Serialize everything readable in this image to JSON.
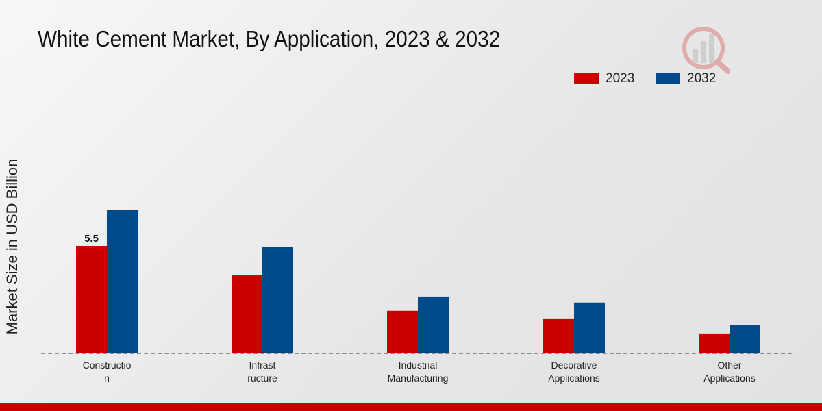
{
  "chart_data": {
    "type": "bar",
    "title": "White Cement Market, By Application, 2023 & 2032",
    "xlabel": "",
    "ylabel": "Market Size in USD Billion",
    "categories": [
      [
        "Constructio",
        "n"
      ],
      [
        "Infrast",
        "ructure"
      ],
      [
        "Industrial",
        "Manufacturing"
      ],
      [
        "Decorative",
        "Applications"
      ],
      [
        "Other",
        "Applications"
      ]
    ],
    "series": [
      {
        "name": "2023",
        "color": "#cc0000",
        "values": [
          5.5,
          4.0,
          2.18,
          1.79,
          1.02
        ]
      },
      {
        "name": "2032",
        "color": "#004a8c",
        "values": [
          7.33,
          5.44,
          2.91,
          2.6,
          1.47
        ]
      }
    ],
    "data_labels": [
      {
        "series": 0,
        "index": 0,
        "text": "5.5"
      }
    ],
    "ylim": [
      0,
      9
    ],
    "grid": false,
    "legend_position": "top-right"
  }
}
